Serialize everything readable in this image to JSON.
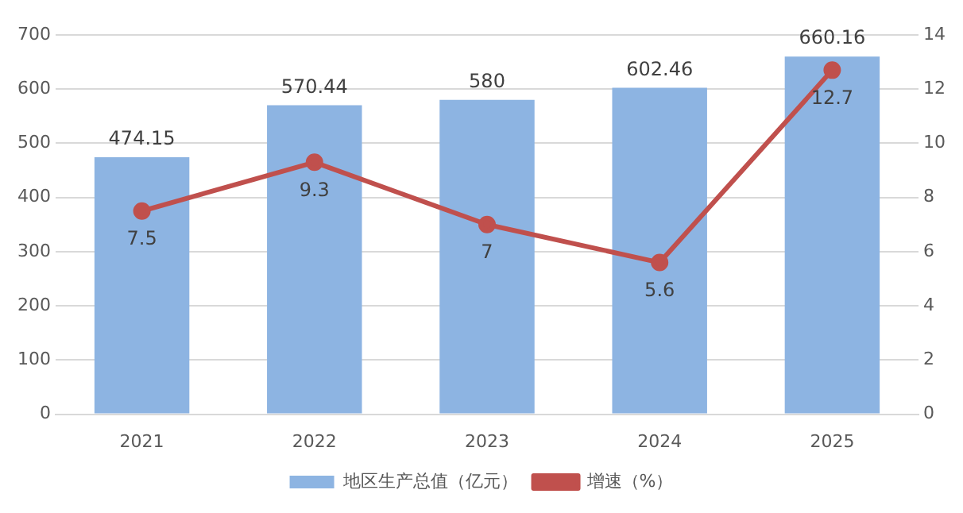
{
  "chart_data": {
    "type": "bar",
    "categories": [
      "2021",
      "2022",
      "2023",
      "2024",
      "2025"
    ],
    "series": [
      {
        "name": "地区生产总值（亿元）",
        "color": "#8db4e2",
        "values": [
          474.15,
          570.44,
          580,
          602.46,
          660.16
        ]
      },
      {
        "name": "增速（%）",
        "type": "line",
        "axis": "y2",
        "color": "#c0504d",
        "values": [
          7.5,
          9.3,
          7,
          5.6,
          12.7
        ]
      }
    ],
    "ylim": [
      0,
      700
    ],
    "yticks": [
      0,
      100,
      200,
      300,
      400,
      500,
      600,
      700
    ],
    "y2lim": [
      0,
      14
    ],
    "y2ticks": [
      0,
      2,
      4,
      6,
      8,
      10,
      12,
      14
    ],
    "grid": "y",
    "legend": "bottom",
    "marker": "circle",
    "line_style": "solid",
    "data_labels": true
  }
}
